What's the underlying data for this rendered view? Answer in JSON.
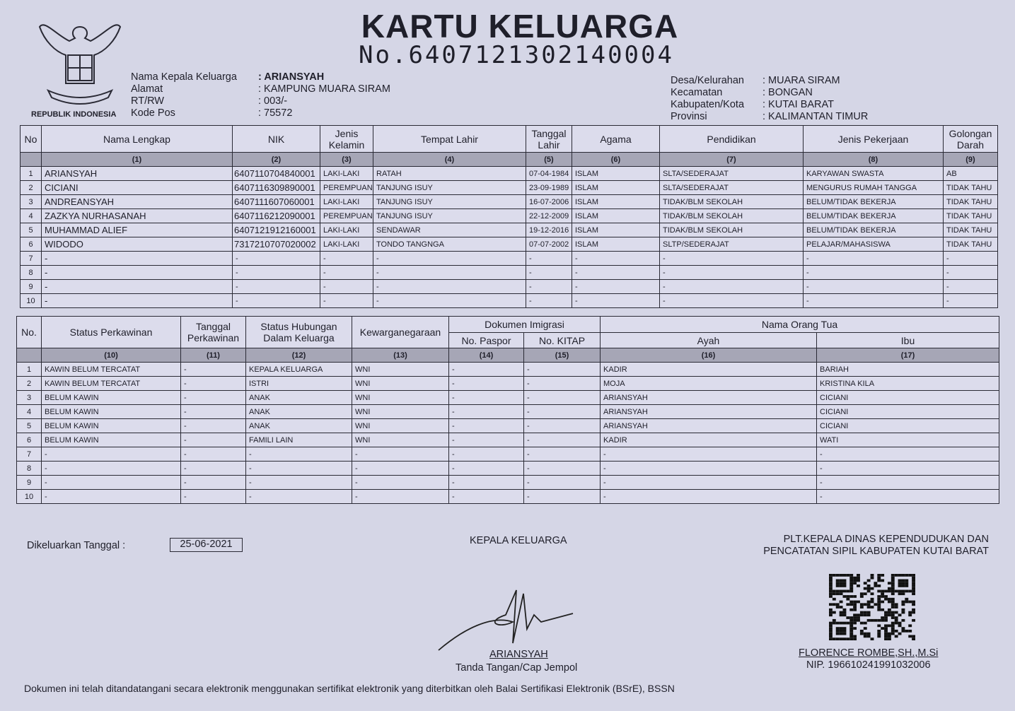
{
  "title": "KARTU KELUARGA",
  "number": "No.6407121302140004",
  "emblem_text": "REPUBLIK INDONESIA",
  "emblem_motto": "BHINNEKA TUNGGAL IKA",
  "left_info": [
    {
      "label": "Nama Kepala Keluarga",
      "value": ": ARIANSYAH"
    },
    {
      "label": "Alamat",
      "value": ": KAMPUNG MUARA SIRAM"
    },
    {
      "label": "RT/RW",
      "value": ": 003/-"
    },
    {
      "label": "Kode Pos",
      "value": ": 75572"
    }
  ],
  "right_info": [
    {
      "label": "Desa/Kelurahan",
      "value": ": MUARA SIRAM"
    },
    {
      "label": "Kecamatan",
      "value": ": BONGAN"
    },
    {
      "label": "Kabupaten/Kota",
      "value": ": KUTAI BARAT"
    },
    {
      "label": "Provinsi",
      "value": ": KALIMANTAN TIMUR"
    }
  ],
  "table1": {
    "headers": [
      "No",
      "Nama Lengkap",
      "NIK",
      "Jenis Kelamin",
      "Tempat Lahir",
      "Tanggal Lahir",
      "Agama",
      "Pendidikan",
      "Jenis Pekerjaan",
      "Golongan Darah"
    ],
    "numbers": [
      "",
      "(1)",
      "(2)",
      "(3)",
      "(4)",
      "(5)",
      "(6)",
      "(7)",
      "(8)",
      "(9)"
    ],
    "rows": [
      [
        "1",
        "ARIANSYAH",
        "6407110704840001",
        "LAKI-LAKI",
        "RATAH",
        "07-04-1984",
        "ISLAM",
        "SLTA/SEDERAJAT",
        "KARYAWAN SWASTA",
        "AB"
      ],
      [
        "2",
        "CICIANI",
        "6407116309890001",
        "PEREMPUAN",
        "TANJUNG ISUY",
        "23-09-1989",
        "ISLAM",
        "SLTA/SEDERAJAT",
        "MENGURUS RUMAH TANGGA",
        "TIDAK TAHU"
      ],
      [
        "3",
        "ANDREANSYAH",
        "6407111607060001",
        "LAKI-LAKI",
        "TANJUNG ISUY",
        "16-07-2006",
        "ISLAM",
        "TIDAK/BLM SEKOLAH",
        "BELUM/TIDAK BEKERJA",
        "TIDAK TAHU"
      ],
      [
        "4",
        "ZAZKYA NURHASANAH",
        "6407116212090001",
        "PEREMPUAN",
        "TANJUNG ISUY",
        "22-12-2009",
        "ISLAM",
        "TIDAK/BLM SEKOLAH",
        "BELUM/TIDAK BEKERJA",
        "TIDAK TAHU"
      ],
      [
        "5",
        "MUHAMMAD ALIEF",
        "6407121912160001",
        "LAKI-LAKI",
        "SENDAWAR",
        "19-12-2016",
        "ISLAM",
        "TIDAK/BLM SEKOLAH",
        "BELUM/TIDAK BEKERJA",
        "TIDAK TAHU"
      ],
      [
        "6",
        "WIDODO",
        "7317210707020002",
        "LAKI-LAKI",
        "TONDO TANGNGA",
        "07-07-2002",
        "ISLAM",
        "SLTP/SEDERAJAT",
        "PELAJAR/MAHASISWA",
        "TIDAK TAHU"
      ],
      [
        "7",
        "-",
        "-",
        "-",
        "-",
        "-",
        "-",
        "-",
        "-",
        "-"
      ],
      [
        "8",
        "-",
        "-",
        "-",
        "-",
        "-",
        "-",
        "-",
        "-",
        "-"
      ],
      [
        "9",
        "-",
        "-",
        "-",
        "-",
        "-",
        "-",
        "-",
        "-",
        "-"
      ],
      [
        "10",
        "-",
        "-",
        "-",
        "-",
        "-",
        "-",
        "-",
        "-",
        "-"
      ]
    ]
  },
  "table2": {
    "headers": [
      "No.",
      "Status Perkawinan",
      "Tanggal Perkawinan",
      "Status Hubungan Dalam Keluarga",
      "Kewarganegaraan",
      "Dokumen Imigrasi",
      "No. Paspor",
      "No. KITAP",
      "Nama Orang Tua",
      "Ayah",
      "Ibu"
    ],
    "numbers": [
      "",
      "(10)",
      "(11)",
      "(12)",
      "(13)",
      "(14)",
      "(15)",
      "(16)",
      "(17)"
    ],
    "rows": [
      [
        "1",
        "KAWIN BELUM TERCATAT",
        "-",
        "KEPALA KELUARGA",
        "WNI",
        "-",
        "-",
        "KADIR",
        "BARIAH"
      ],
      [
        "2",
        "KAWIN BELUM TERCATAT",
        "-",
        "ISTRI",
        "WNI",
        "-",
        "-",
        "MOJA",
        "KRISTINA KILA"
      ],
      [
        "3",
        "BELUM KAWIN",
        "-",
        "ANAK",
        "WNI",
        "-",
        "-",
        "ARIANSYAH",
        "CICIANI"
      ],
      [
        "4",
        "BELUM KAWIN",
        "-",
        "ANAK",
        "WNI",
        "-",
        "-",
        "ARIANSYAH",
        "CICIANI"
      ],
      [
        "5",
        "BELUM KAWIN",
        "-",
        "ANAK",
        "WNI",
        "-",
        "-",
        "ARIANSYAH",
        "CICIANI"
      ],
      [
        "6",
        "BELUM KAWIN",
        "-",
        "FAMILI LAIN",
        "WNI",
        "-",
        "-",
        "KADIR",
        "WATI"
      ],
      [
        "7",
        "-",
        "-",
        "-",
        "-",
        "-",
        "-",
        "-",
        "-"
      ],
      [
        "8",
        "-",
        "-",
        "-",
        "-",
        "-",
        "-",
        "-",
        "-"
      ],
      [
        "9",
        "-",
        "-",
        "-",
        "-",
        "-",
        "-",
        "-",
        "-"
      ],
      [
        "10",
        "-",
        "-",
        "-",
        "-",
        "-",
        "-",
        "-",
        "-"
      ]
    ]
  },
  "footer": {
    "issued_label": "Dikeluarkan Tanggal  :",
    "issued_date": "25-06-2021",
    "head_title": "KEPALA KELUARGA",
    "head_name": "ARIANSYAH",
    "head_sign_caption": "Tanda Tangan/Cap Jempol",
    "official_title_1": "PLT.KEPALA DINAS KEPENDUDUKAN DAN",
    "official_title_2": "PENCATATAN SIPIL KABUPATEN KUTAI BARAT",
    "official_name": "FLORENCE ROMBE,SH.,M.Si",
    "official_nip": "NIP. 196610241991032006",
    "disclaimer": "Dokumen ini telah ditandatangani secara elektronik menggunakan sertifikat elektronik yang diterbitkan oleh Balai Sertifikasi Elektronik (BSrE), BSSN"
  }
}
